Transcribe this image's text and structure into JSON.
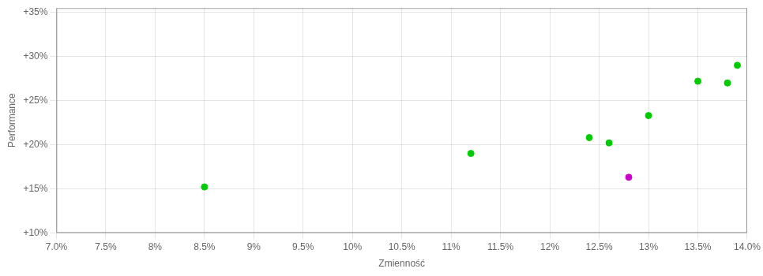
{
  "chart_data": {
    "type": "scatter",
    "xlabel": "Zmienność",
    "ylabel": "Performance",
    "x": [
      0.085,
      0.112,
      0.124,
      0.126,
      0.128,
      0.13,
      0.135,
      0.138,
      0.139
    ],
    "values": [
      0.152,
      0.19,
      0.208,
      0.202,
      0.163,
      0.233,
      0.272,
      0.27,
      0.29
    ],
    "colors": [
      "#00cc00",
      "#00cc00",
      "#00cc00",
      "#00cc00",
      "#cc00cc",
      "#00cc00",
      "#00cc00",
      "#00cc00",
      "#00cc00"
    ],
    "xlim": [
      0.07,
      0.14
    ],
    "ylim": [
      0.1,
      0.355
    ],
    "xticks": [
      {
        "value": 0.07,
        "label": "7.0%"
      },
      {
        "value": 0.075,
        "label": "7.5%"
      },
      {
        "value": 0.08,
        "label": "8%"
      },
      {
        "value": 0.085,
        "label": "8.5%"
      },
      {
        "value": 0.09,
        "label": "9%"
      },
      {
        "value": 0.095,
        "label": "9.5%"
      },
      {
        "value": 0.1,
        "label": "10%"
      },
      {
        "value": 0.105,
        "label": "10.5%"
      },
      {
        "value": 0.11,
        "label": "11%"
      },
      {
        "value": 0.115,
        "label": "11.5%"
      },
      {
        "value": 0.12,
        "label": "12%"
      },
      {
        "value": 0.125,
        "label": "12.5%"
      },
      {
        "value": 0.13,
        "label": "13%"
      },
      {
        "value": 0.135,
        "label": "13.5%"
      },
      {
        "value": 0.14,
        "label": "14.0%"
      }
    ],
    "yticks": [
      {
        "value": 0.1,
        "label": "+10%"
      },
      {
        "value": 0.15,
        "label": "+15%"
      },
      {
        "value": 0.2,
        "label": "+20%"
      },
      {
        "value": 0.25,
        "label": "+25%"
      },
      {
        "value": 0.3,
        "label": "+30%"
      },
      {
        "value": 0.35,
        "label": "+35%"
      }
    ],
    "grid": true
  }
}
